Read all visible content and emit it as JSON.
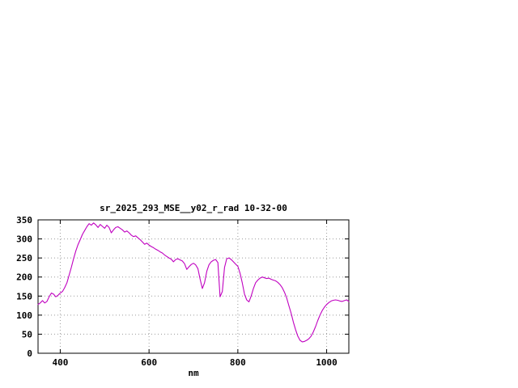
{
  "chart_data": {
    "type": "line",
    "title": "sr_2025_293_MSE__y02_r_rad 10-32-00",
    "xlabel": "nm",
    "ylabel": "",
    "xlim": [
      350,
      1050
    ],
    "ylim": [
      0,
      350
    ],
    "xticks": [
      400,
      600,
      800,
      1000
    ],
    "yticks": [
      0,
      50,
      100,
      150,
      200,
      250,
      300,
      350
    ],
    "grid": true,
    "legend": false,
    "x": [
      350,
      355,
      360,
      365,
      370,
      375,
      380,
      385,
      390,
      395,
      400,
      405,
      410,
      415,
      420,
      425,
      430,
      435,
      440,
      445,
      450,
      455,
      460,
      465,
      470,
      475,
      480,
      485,
      490,
      495,
      500,
      505,
      510,
      515,
      520,
      525,
      530,
      535,
      540,
      545,
      550,
      555,
      560,
      565,
      570,
      575,
      580,
      585,
      590,
      595,
      600,
      605,
      610,
      615,
      620,
      625,
      630,
      635,
      640,
      645,
      650,
      655,
      660,
      665,
      670,
      675,
      680,
      685,
      690,
      695,
      700,
      705,
      710,
      715,
      720,
      725,
      730,
      735,
      740,
      745,
      750,
      755,
      760,
      765,
      770,
      775,
      780,
      785,
      790,
      795,
      800,
      805,
      810,
      815,
      820,
      825,
      830,
      835,
      840,
      845,
      850,
      855,
      860,
      865,
      870,
      875,
      880,
      885,
      890,
      895,
      900,
      905,
      910,
      915,
      920,
      925,
      930,
      935,
      940,
      945,
      950,
      955,
      960,
      965,
      970,
      975,
      980,
      985,
      990,
      995,
      1000,
      1005,
      1010,
      1015,
      1020,
      1025,
      1030,
      1035,
      1040,
      1045,
      1050
    ],
    "series": [
      {
        "name": "sr_2025_293_MSE__y02_r_rad 10-32-00",
        "color": "#c000c0",
        "values": [
          128,
          132,
          138,
          132,
          136,
          148,
          158,
          155,
          148,
          152,
          158,
          162,
          172,
          185,
          205,
          225,
          248,
          268,
          285,
          298,
          312,
          322,
          332,
          340,
          336,
          342,
          337,
          330,
          338,
          333,
          328,
          336,
          330,
          316,
          324,
          330,
          332,
          328,
          324,
          318,
          321,
          316,
          310,
          306,
          308,
          303,
          298,
          292,
          286,
          289,
          284,
          280,
          277,
          273,
          270,
          266,
          263,
          258,
          254,
          250,
          247,
          240,
          246,
          248,
          245,
          242,
          235,
          220,
          227,
          233,
          236,
          232,
          222,
          195,
          170,
          185,
          215,
          232,
          240,
          244,
          246,
          238,
          148,
          162,
          225,
          248,
          250,
          246,
          240,
          234,
          228,
          210,
          185,
          155,
          140,
          135,
          150,
          170,
          185,
          192,
          197,
          200,
          198,
          196,
          197,
          194,
          192,
          190,
          186,
          180,
          172,
          160,
          145,
          125,
          105,
          82,
          62,
          45,
          34,
          30,
          31,
          34,
          38,
          45,
          56,
          70,
          86,
          100,
          112,
          121,
          128,
          133,
          137,
          139,
          140,
          139,
          137,
          136,
          138,
          140,
          136
        ]
      }
    ],
    "colors": {
      "line": "#c000c0",
      "grid": "#9b9b9b",
      "border": "#000000",
      "background": "#ffffff"
    }
  }
}
